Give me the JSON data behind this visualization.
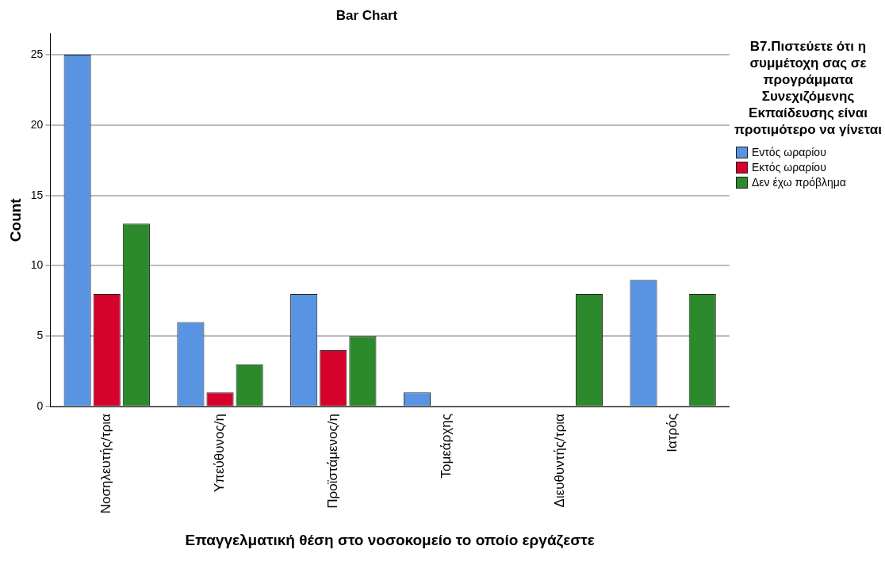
{
  "chart_data": {
    "type": "bar",
    "title": "Bar Chart",
    "xlabel": "Επαγγελματική θέση στο νοσοκομείο το οποίο εργάζεστε",
    "ylabel": "Count",
    "legend_title": "B7.Πιστεύετε ότι η συμμέτοχη σας σε προγράμματα Συνεχιζόμενης Εκπαίδευσης είναι προτιμότερο να γίνεται",
    "categories": [
      "Νοσηλευτής/τρια",
      "Υπεύθυνος/η",
      "Προϊστάμενος/η",
      "Τομεάρχης",
      "Διευθυντής/τρια",
      "Ιατρός"
    ],
    "series": [
      {
        "name": "Εντός ωραρίου",
        "color": "#5894e1",
        "values": [
          25,
          6,
          8,
          1,
          0,
          9
        ]
      },
      {
        "name": "Εκτός ωραρίου",
        "color": "#d5032c",
        "values": [
          8,
          1,
          4,
          0,
          0,
          0
        ]
      },
      {
        "name": "Δεν έχω πρόβλημα",
        "color": "#2c8a2c",
        "values": [
          13,
          3,
          5,
          0,
          8,
          8
        ]
      }
    ],
    "ylim": [
      0,
      26.5
    ],
    "yticks": [
      0,
      5,
      10,
      15,
      20,
      25
    ],
    "grid": "y",
    "legend": "right"
  }
}
